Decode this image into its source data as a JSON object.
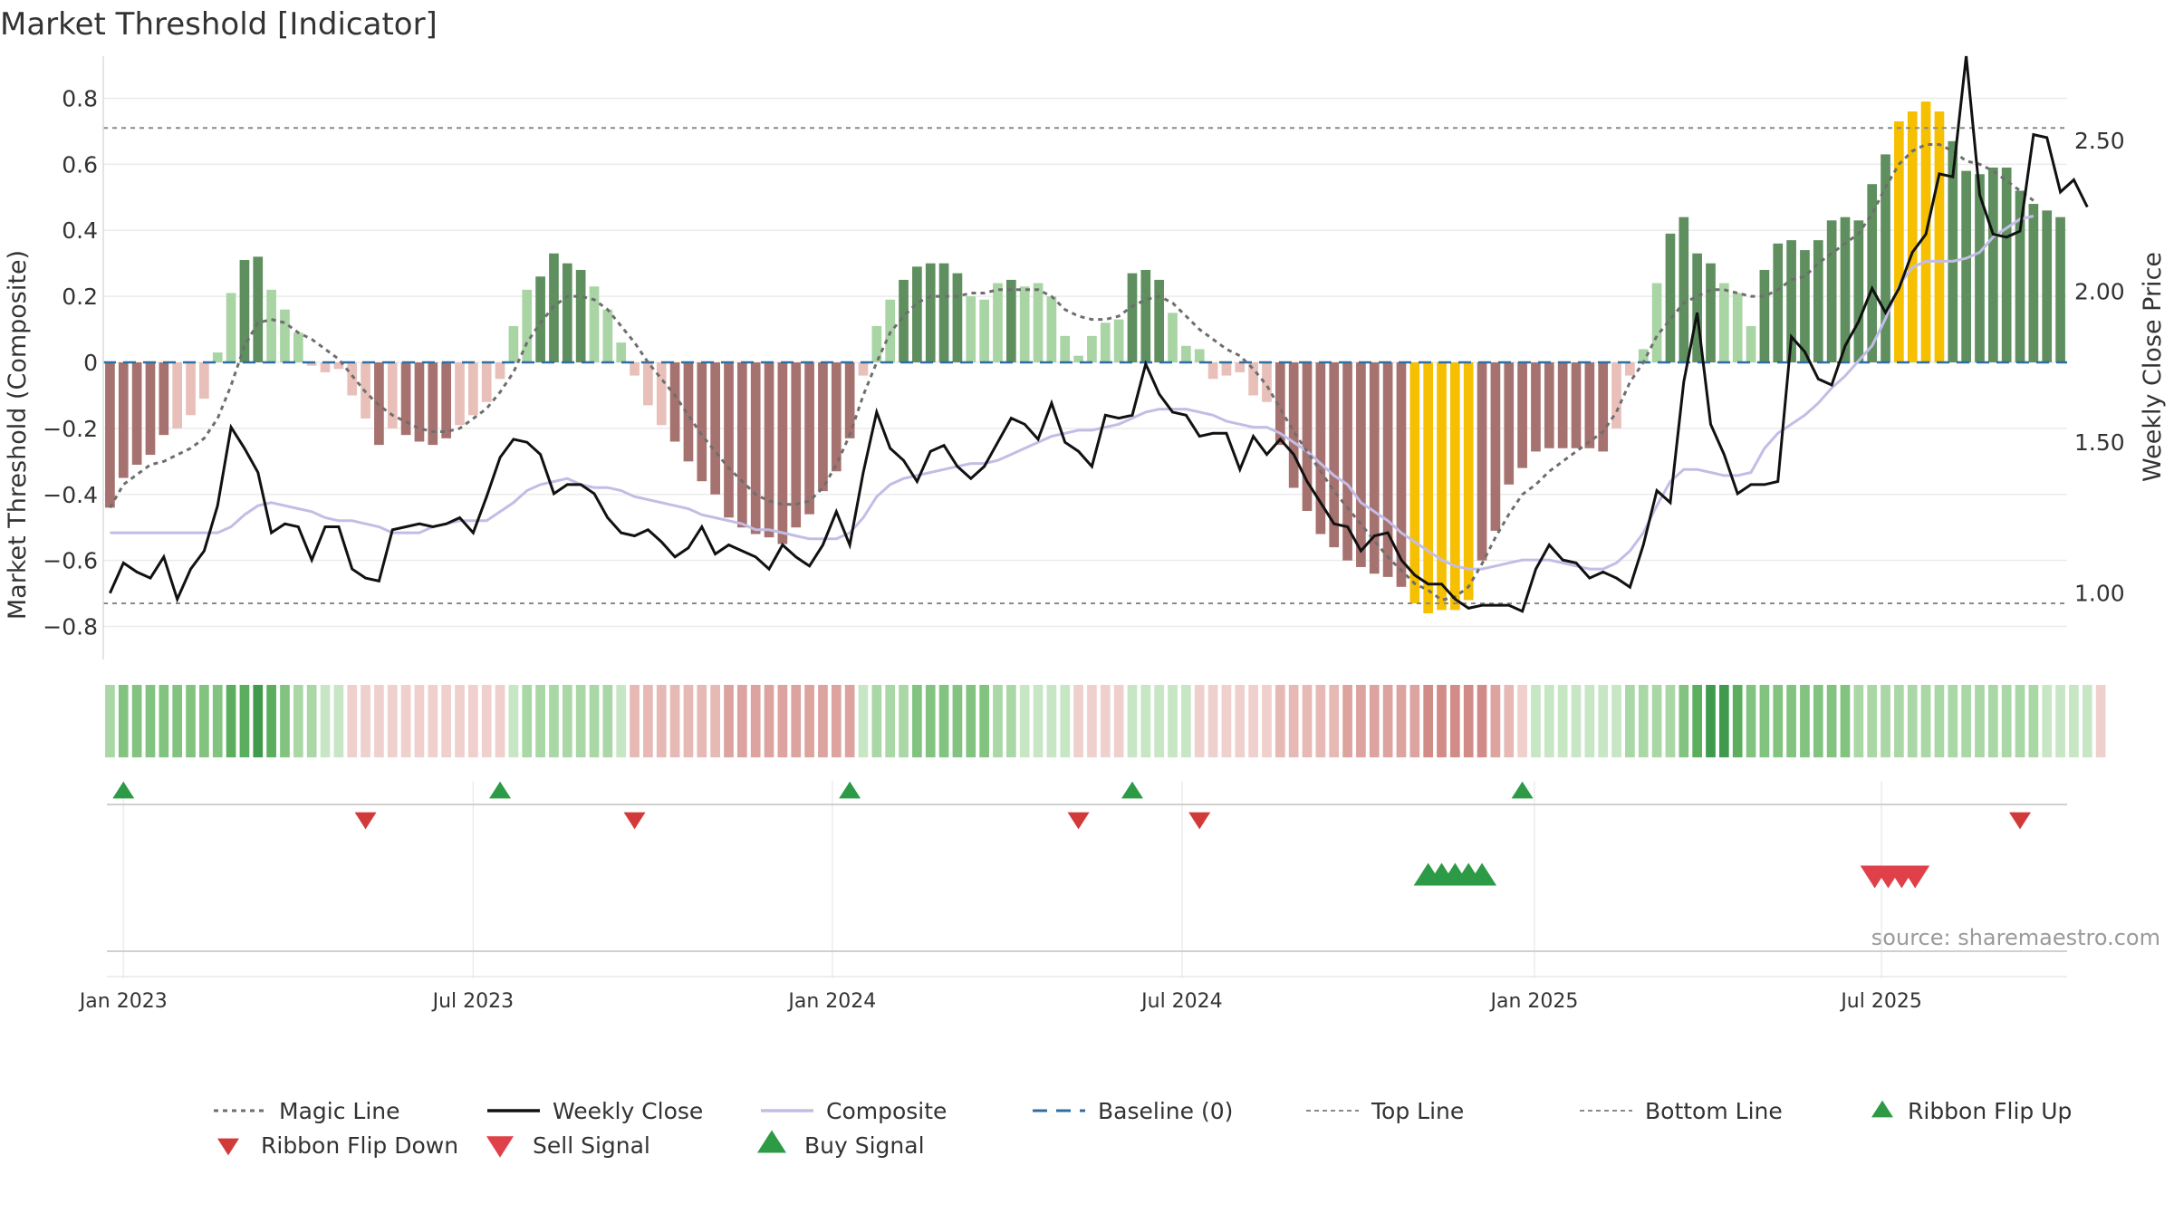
{
  "chart_data": {
    "type": "bar+line",
    "title": "Market Threshold [Indicator]",
    "ylabel_left": "Market Threshold (Composite)",
    "ylabel_right": "Weekly Close Price",
    "source": "source: sharemaestro.com",
    "left_axis": {
      "ylim": [
        -0.9,
        0.9
      ],
      "ticks": [
        0.8,
        0.6,
        0.4,
        0.2,
        0,
        -0.2,
        -0.4,
        -0.6,
        -0.8
      ],
      "tick_labels": [
        "0.8",
        "0.6",
        "0.4",
        "0.2",
        "0",
        "−0.2",
        "−0.4",
        "−0.6",
        "−0.8"
      ]
    },
    "right_axis": {
      "ylim": [
        0.78,
        2.75
      ],
      "ticks": [
        2.5,
        2.0,
        1.5,
        1.0
      ],
      "tick_labels": [
        "2.50",
        "2.00",
        "1.50",
        "1.00"
      ]
    },
    "x_axis": {
      "start": "2022-12-26",
      "week_count": 146,
      "tick_labels": [
        "Jan 2023",
        "Jul 2023",
        "Jan 2024",
        "Jul 2024",
        "Jan 2025",
        "Jul 2025"
      ],
      "tick_weeks": [
        1,
        27,
        53.7,
        79.7,
        105.9,
        131.7
      ]
    },
    "top_line": 0.71,
    "bottom_line": -0.73,
    "baseline": 0,
    "composite_bars": [
      -0.44,
      -0.35,
      -0.31,
      -0.28,
      -0.22,
      -0.2,
      -0.16,
      -0.11,
      0.03,
      0.21,
      0.31,
      0.32,
      0.22,
      0.16,
      0.09,
      -0.01,
      -0.03,
      -0.02,
      -0.1,
      -0.17,
      -0.25,
      -0.2,
      -0.22,
      -0.24,
      -0.25,
      -0.23,
      -0.19,
      -0.16,
      -0.12,
      -0.05,
      0.11,
      0.22,
      0.26,
      0.33,
      0.3,
      0.28,
      0.23,
      0.16,
      0.06,
      -0.04,
      -0.13,
      -0.19,
      -0.24,
      -0.3,
      -0.36,
      -0.4,
      -0.47,
      -0.5,
      -0.52,
      -0.53,
      -0.55,
      -0.5,
      -0.46,
      -0.39,
      -0.33,
      -0.23,
      -0.04,
      0.11,
      0.19,
      0.25,
      0.29,
      0.3,
      0.3,
      0.27,
      0.2,
      0.19,
      0.24,
      0.25,
      0.23,
      0.24,
      0.2,
      0.08,
      0.02,
      0.08,
      0.12,
      0.13,
      0.27,
      0.28,
      0.25,
      0.15,
      0.05,
      0.04,
      -0.05,
      -0.04,
      -0.03,
      -0.1,
      -0.12,
      -0.25,
      -0.38,
      -0.45,
      -0.52,
      -0.56,
      -0.6,
      -0.62,
      -0.64,
      -0.65,
      -0.68,
      -0.73,
      -0.76,
      -0.75,
      -0.75,
      -0.72,
      -0.6,
      -0.51,
      -0.37,
      -0.32,
      -0.27,
      -0.26,
      -0.26,
      -0.26,
      -0.26,
      -0.27,
      -0.2,
      -0.04,
      0.04,
      0.24,
      0.39,
      0.44,
      0.33,
      0.3,
      0.24,
      0.21,
      0.11,
      0.28,
      0.36,
      0.37,
      0.34,
      0.37,
      0.43,
      0.44,
      0.43,
      0.54,
      0.63,
      0.73,
      0.76,
      0.79,
      0.76,
      0.67,
      0.58,
      0.57,
      0.59,
      0.59,
      0.52,
      0.48,
      0.46,
      0.44
    ],
    "magic_line": [
      -0.44,
      -0.37,
      -0.34,
      -0.31,
      -0.3,
      -0.28,
      -0.26,
      -0.23,
      -0.17,
      -0.07,
      0.05,
      0.12,
      0.13,
      0.12,
      0.09,
      0.07,
      0.04,
      0.01,
      -0.04,
      -0.09,
      -0.13,
      -0.16,
      -0.18,
      -0.2,
      -0.21,
      -0.21,
      -0.2,
      -0.17,
      -0.14,
      -0.09,
      -0.03,
      0.06,
      0.12,
      0.17,
      0.2,
      0.2,
      0.19,
      0.16,
      0.11,
      0.06,
      0,
      -0.05,
      -0.1,
      -0.16,
      -0.22,
      -0.27,
      -0.32,
      -0.36,
      -0.4,
      -0.42,
      -0.43,
      -0.43,
      -0.42,
      -0.38,
      -0.31,
      -0.22,
      -0.1,
      0,
      0.09,
      0.14,
      0.18,
      0.2,
      0.2,
      0.2,
      0.21,
      0.21,
      0.22,
      0.22,
      0.22,
      0.22,
      0.2,
      0.16,
      0.14,
      0.13,
      0.13,
      0.14,
      0.17,
      0.19,
      0.2,
      0.18,
      0.14,
      0.1,
      0.07,
      0.04,
      0.02,
      -0.02,
      -0.07,
      -0.14,
      -0.21,
      -0.27,
      -0.33,
      -0.39,
      -0.44,
      -0.49,
      -0.54,
      -0.59,
      -0.63,
      -0.67,
      -0.69,
      -0.72,
      -0.71,
      -0.68,
      -0.61,
      -0.53,
      -0.46,
      -0.4,
      -0.37,
      -0.33,
      -0.3,
      -0.27,
      -0.24,
      -0.21,
      -0.15,
      -0.06,
      0,
      0.08,
      0.13,
      0.18,
      0.2,
      0.22,
      0.22,
      0.21,
      0.2,
      0.2,
      0.22,
      0.25,
      0.26,
      0.3,
      0.33,
      0.36,
      0.39,
      0.45,
      0.53,
      0.6,
      0.64,
      0.66,
      0.66,
      0.64,
      0.61,
      0.6,
      0.58,
      0.55,
      0.52,
      0.49
    ],
    "weekly_close": [
      1.0,
      1.1,
      1.07,
      1.05,
      1.12,
      0.98,
      1.08,
      1.14,
      1.29,
      1.55,
      1.48,
      1.4,
      1.2,
      1.23,
      1.22,
      1.11,
      1.22,
      1.22,
      1.08,
      1.05,
      1.04,
      1.21,
      1.22,
      1.23,
      1.22,
      1.23,
      1.25,
      1.2,
      1.32,
      1.45,
      1.51,
      1.5,
      1.46,
      1.33,
      1.36,
      1.36,
      1.33,
      1.25,
      1.2,
      1.19,
      1.21,
      1.17,
      1.12,
      1.15,
      1.22,
      1.13,
      1.16,
      1.14,
      1.12,
      1.08,
      1.16,
      1.12,
      1.09,
      1.16,
      1.27,
      1.16,
      1.4,
      1.6,
      1.48,
      1.44,
      1.37,
      1.47,
      1.49,
      1.42,
      1.38,
      1.42,
      1.5,
      1.58,
      1.56,
      1.51,
      1.63,
      1.5,
      1.47,
      1.42,
      1.59,
      1.58,
      1.59,
      1.76,
      1.66,
      1.6,
      1.59,
      1.52,
      1.53,
      1.53,
      1.41,
      1.52,
      1.46,
      1.51,
      1.46,
      1.37,
      1.3,
      1.23,
      1.22,
      1.14,
      1.19,
      1.2,
      1.11,
      1.06,
      1.03,
      1.03,
      0.98,
      0.95,
      0.96,
      0.96,
      0.96,
      0.94,
      1.08,
      1.16,
      1.11,
      1.1,
      1.05,
      1.07,
      1.05,
      1.02,
      1.16,
      1.34,
      1.3,
      1.7,
      1.93,
      1.56,
      1.46,
      1.33,
      1.36,
      1.36,
      1.37,
      1.85,
      1.8,
      1.71,
      1.69,
      1.82,
      1.9,
      2.01,
      1.93,
      2.01,
      2.13,
      2.19,
      2.39,
      2.38,
      2.78,
      2.32,
      2.19,
      2.18,
      2.2,
      2.52,
      2.51,
      2.33,
      2.37,
      2.28
    ],
    "composite_line": [
      1.2,
      1.2,
      1.2,
      1.2,
      1.2,
      1.2,
      1.2,
      1.2,
      1.2,
      1.22,
      1.26,
      1.29,
      1.3,
      1.29,
      1.28,
      1.27,
      1.25,
      1.24,
      1.24,
      1.23,
      1.22,
      1.2,
      1.2,
      1.2,
      1.22,
      1.23,
      1.24,
      1.24,
      1.24,
      1.27,
      1.3,
      1.34,
      1.36,
      1.37,
      1.38,
      1.36,
      1.35,
      1.35,
      1.34,
      1.32,
      1.31,
      1.3,
      1.29,
      1.28,
      1.26,
      1.25,
      1.24,
      1.23,
      1.21,
      1.21,
      1.2,
      1.19,
      1.18,
      1.18,
      1.18,
      1.2,
      1.25,
      1.32,
      1.36,
      1.38,
      1.39,
      1.4,
      1.41,
      1.42,
      1.43,
      1.43,
      1.44,
      1.46,
      1.48,
      1.5,
      1.52,
      1.53,
      1.54,
      1.54,
      1.55,
      1.56,
      1.58,
      1.6,
      1.61,
      1.61,
      1.61,
      1.6,
      1.59,
      1.57,
      1.56,
      1.55,
      1.55,
      1.53,
      1.5,
      1.47,
      1.43,
      1.39,
      1.36,
      1.3,
      1.27,
      1.24,
      1.2,
      1.17,
      1.14,
      1.11,
      1.09,
      1.08,
      1.08,
      1.09,
      1.1,
      1.11,
      1.11,
      1.11,
      1.1,
      1.09,
      1.08,
      1.08,
      1.1,
      1.14,
      1.2,
      1.29,
      1.37,
      1.41,
      1.41,
      1.4,
      1.39,
      1.39,
      1.4,
      1.48,
      1.53,
      1.56,
      1.59,
      1.63,
      1.68,
      1.72,
      1.77,
      1.82,
      1.91,
      2.02,
      2.08,
      2.1,
      2.1,
      2.1,
      2.11,
      2.13,
      2.18,
      2.21,
      2.24,
      2.25
    ],
    "ribbon_strength": [
      2,
      3,
      3,
      3,
      3,
      3,
      3,
      3,
      3,
      4,
      4,
      5,
      4,
      3,
      2,
      2,
      1,
      1,
      -1,
      -1,
      -1,
      -1,
      -1,
      -1,
      -1,
      -1,
      -1,
      -1,
      -1,
      -1,
      1,
      2,
      2,
      2,
      2,
      2,
      2,
      2,
      1,
      -2,
      -2,
      -2,
      -2,
      -2,
      -2,
      -2,
      -3,
      -3,
      -3,
      -3,
      -3,
      -3,
      -3,
      -3,
      -3,
      -3,
      1,
      2,
      2,
      2,
      3,
      3,
      3,
      3,
      3,
      3,
      2,
      2,
      1,
      1,
      1,
      1,
      -1,
      -1,
      -1,
      -1,
      1,
      1,
      1,
      1,
      1,
      -1,
      -1,
      -1,
      -1,
      -1,
      -1,
      -2,
      -2,
      -2,
      -2,
      -2,
      -3,
      -3,
      -3,
      -3,
      -3,
      -3,
      -4,
      -4,
      -4,
      -4,
      -4,
      -3,
      -2,
      -1,
      1,
      1,
      1,
      1,
      1,
      1,
      1,
      2,
      2,
      2,
      2,
      3,
      4,
      5,
      5,
      4,
      3,
      3,
      3,
      3,
      3,
      3,
      3,
      3,
      2,
      2,
      2,
      2,
      2,
      2,
      2,
      2,
      2,
      2,
      2,
      2,
      2,
      2,
      1,
      1,
      1,
      1,
      -1
    ],
    "ribbon_flip_up_weeks": [
      1,
      29,
      55,
      76,
      105
    ],
    "ribbon_flip_down_weeks": [
      19,
      39,
      72,
      81,
      142
    ],
    "sell_signal_weeks": [
      131.2,
      132.2,
      133.2,
      134.2
    ],
    "buy_signal_weeks": [
      98,
      99,
      100,
      101,
      102
    ],
    "legend": [
      {
        "label": "Magic Line",
        "key": "magic"
      },
      {
        "label": "Weekly Close",
        "key": "close"
      },
      {
        "label": "Composite",
        "key": "composite"
      },
      {
        "label": "Baseline (0)",
        "key": "baseline"
      },
      {
        "label": "Top Line",
        "key": "top"
      },
      {
        "label": "Bottom Line",
        "key": "bottom"
      },
      {
        "label": "Ribbon Flip Up",
        "key": "flipup"
      },
      {
        "label": "Ribbon Flip Down",
        "key": "flipdown"
      },
      {
        "label": "Sell Signal",
        "key": "sell"
      },
      {
        "label": "Buy Signal",
        "key": "buy"
      }
    ],
    "colors": {
      "strong_pos": "#5f8f5f",
      "weak_pos": "#a9d4a4",
      "strong_neg": "#a6726f",
      "weak_neg": "#e8c0b9",
      "extreme": "#f6c000",
      "magic": "#6e6e6e",
      "close": "#111111",
      "composite": "#c3bde6",
      "baseline": "#2f6ea0",
      "guide": "#8a8a8a",
      "up": "#2d9a46",
      "down": "#d23a3a",
      "sell": "#e0404a",
      "buy": "#2d9a46"
    }
  }
}
